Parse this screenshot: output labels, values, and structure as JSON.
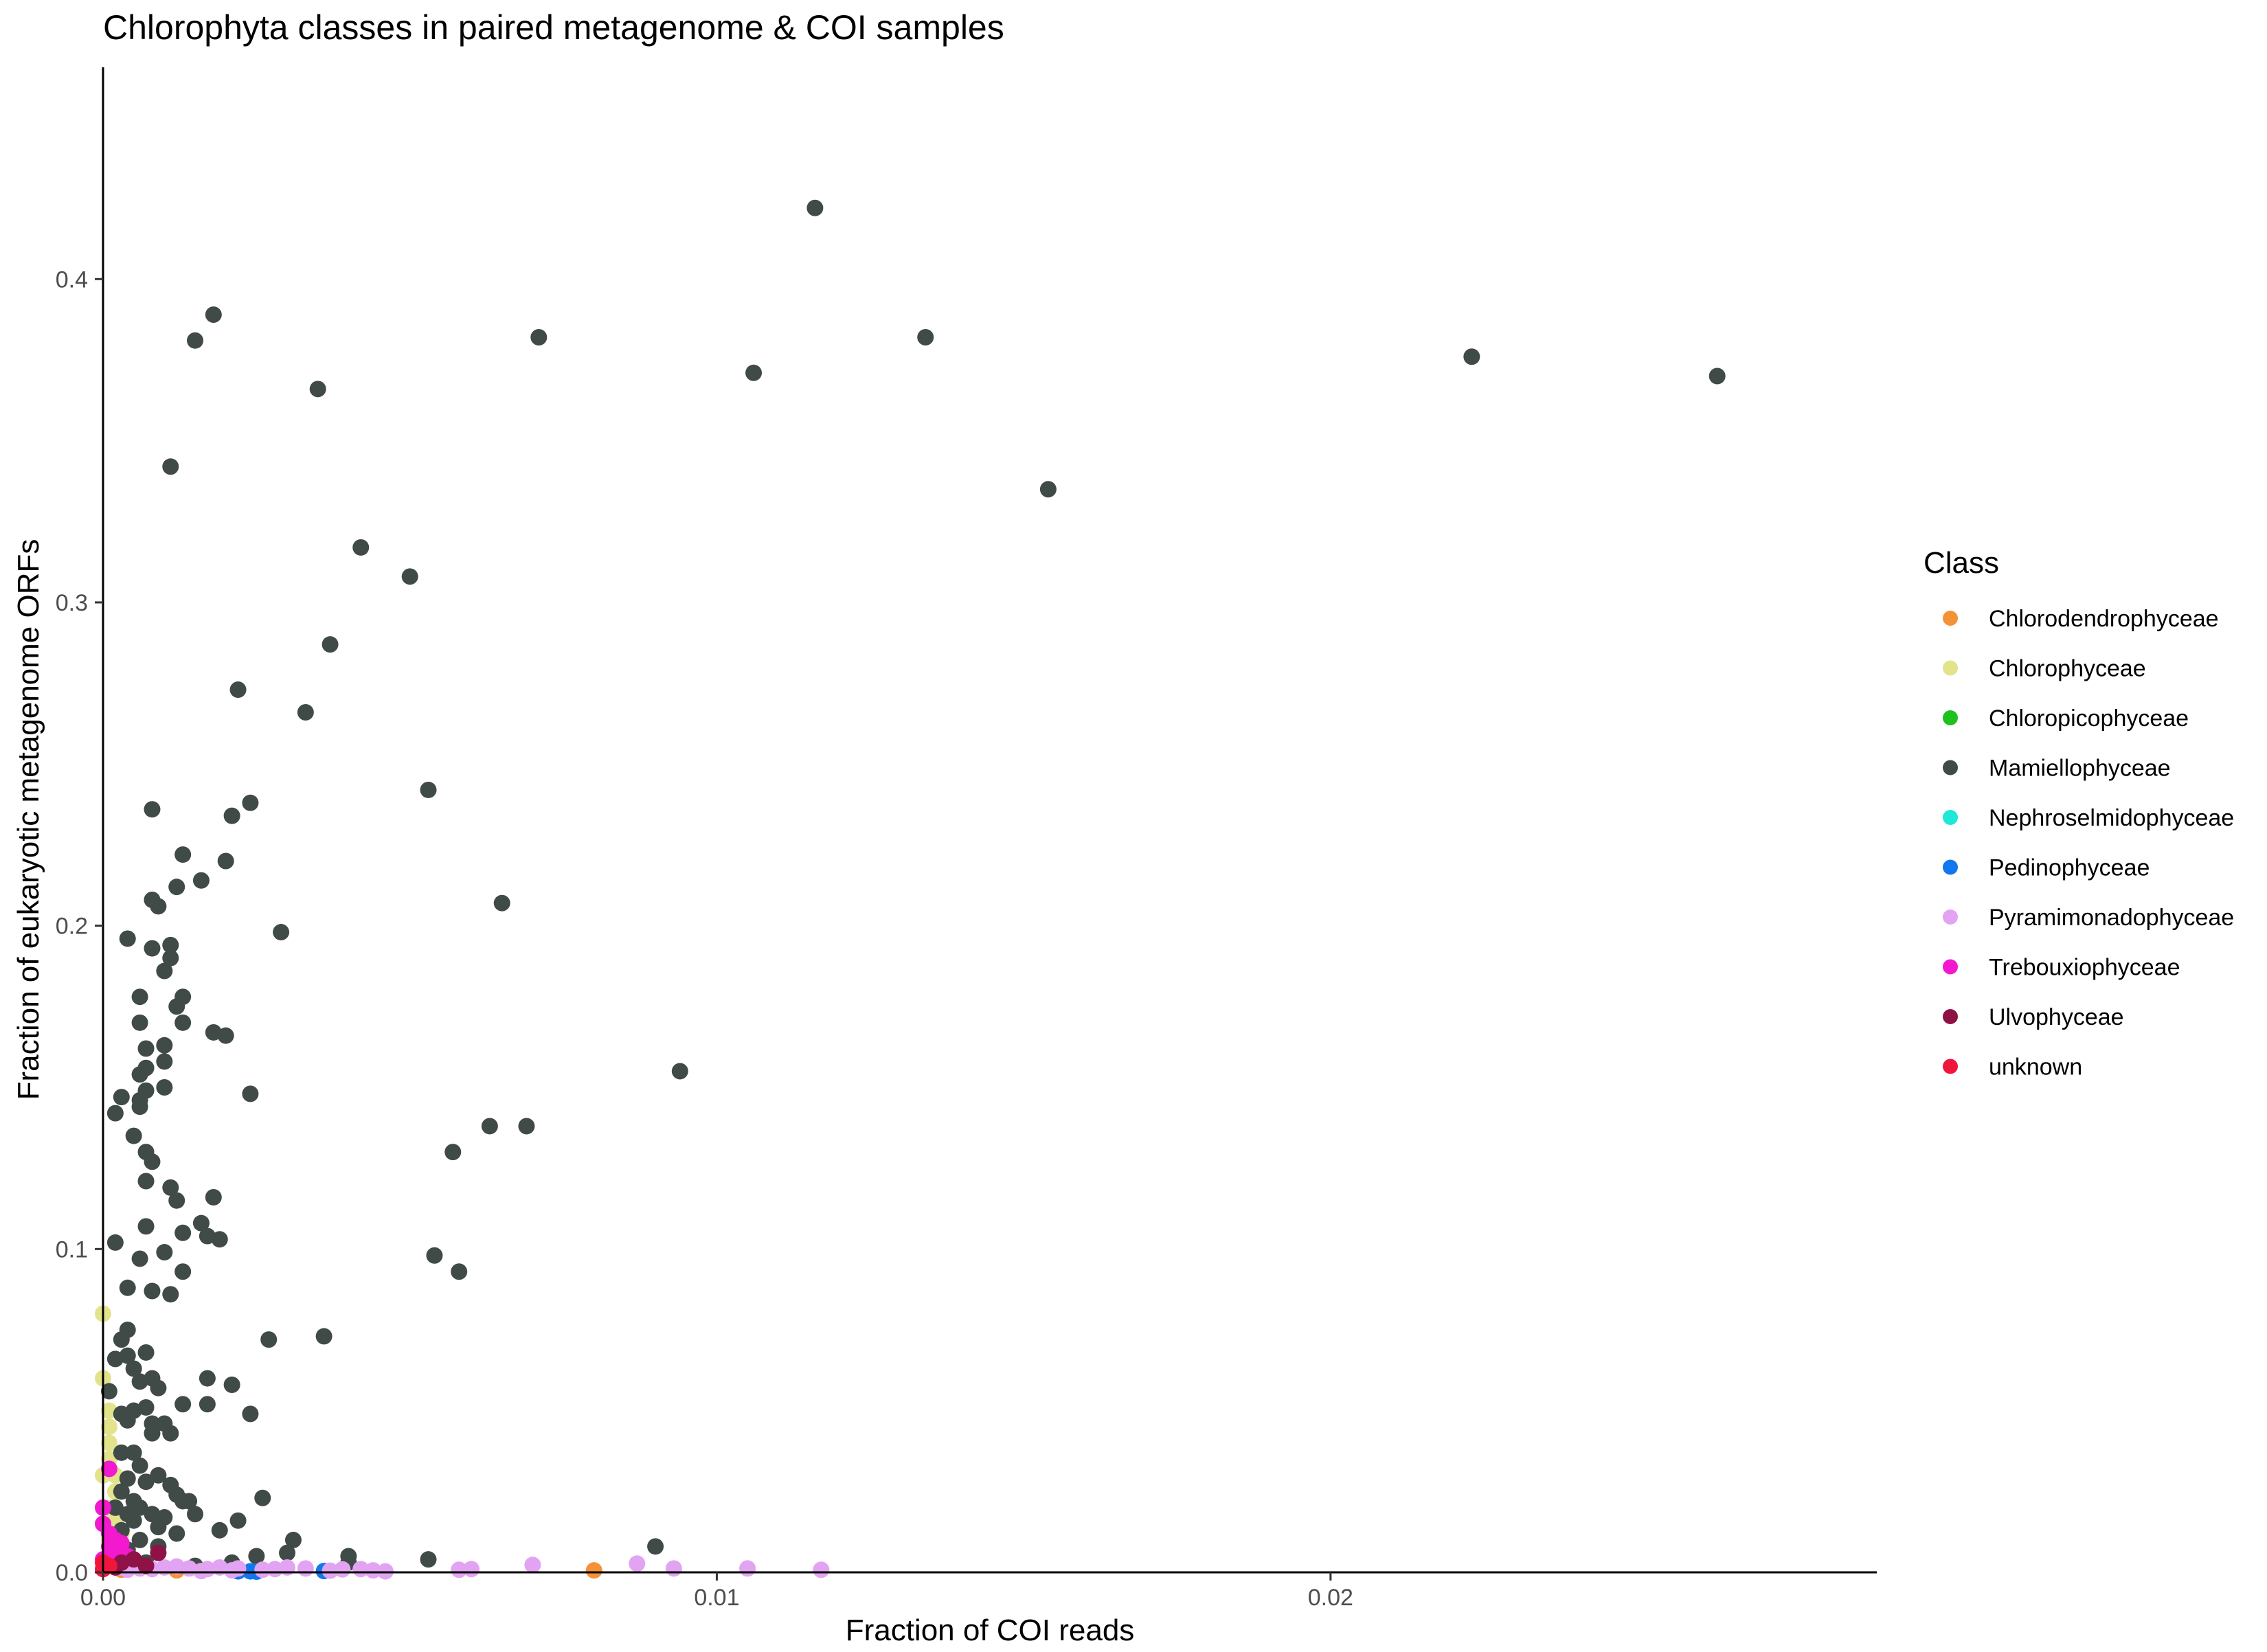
{
  "chart_data": {
    "type": "scatter",
    "title": "Chlorophyta classes in paired metagenome & COI samples",
    "xlabel": "Fraction of COI reads",
    "ylabel": "Fraction of eukaryotic metagenome ORFs",
    "xlim": [
      0,
      0.0289
    ],
    "ylim": [
      0,
      0.4655
    ],
    "x_ticks": [
      0,
      0.01,
      0.02
    ],
    "x_tick_labels": [
      "0.00",
      "0.01",
      "0.02"
    ],
    "y_ticks": [
      0,
      0.1,
      0.2,
      0.3,
      0.4
    ],
    "y_tick_labels": [
      "0.0",
      "0.1",
      "0.2",
      "0.3",
      "0.4"
    ],
    "grid": false,
    "legend": {
      "title": "Class",
      "position": "right"
    },
    "series": [
      {
        "name": "Chlorodendrophyceae",
        "color": "#f39237",
        "points": [
          [
            0.0016,
            0.0005
          ],
          [
            0.008,
            0.0006
          ],
          [
            0.0003,
            0.0008
          ],
          [
            0.0012,
            0.0006
          ]
        ]
      },
      {
        "name": "Chlorophyceae",
        "color": "#e2e38b",
        "points": [
          [
            0.0,
            0.08
          ],
          [
            0.0,
            0.06
          ],
          [
            0.0001,
            0.045
          ],
          [
            0.0001,
            0.04
          ],
          [
            0.0001,
            0.035
          ],
          [
            0.0002,
            0.03
          ],
          [
            0.0002,
            0.025
          ],
          [
            0.0001,
            0.02
          ],
          [
            0.0002,
            0.015
          ],
          [
            0.0003,
            0.012
          ],
          [
            0.0001,
            0.05
          ],
          [
            0.0002,
            0.018
          ],
          [
            0.0003,
            0.008
          ],
          [
            0.0004,
            0.005
          ],
          [
            0.0,
            0.03
          ],
          [
            0.0001,
            0.01
          ]
        ]
      },
      {
        "name": "Chloropicophyceae",
        "color": "#1ec11e",
        "points": [
          [
            0.0001,
            0.003
          ],
          [
            0.0002,
            0.002
          ]
        ]
      },
      {
        "name": "Mamiellophyceae",
        "color": "#404a47",
        "points": [
          [
            0.0116,
            0.422
          ],
          [
            0.0018,
            0.389
          ],
          [
            0.0015,
            0.381
          ],
          [
            0.0071,
            0.382
          ],
          [
            0.0134,
            0.382
          ],
          [
            0.0106,
            0.371
          ],
          [
            0.0223,
            0.376
          ],
          [
            0.0263,
            0.37
          ],
          [
            0.0035,
            0.366
          ],
          [
            0.0011,
            0.342
          ],
          [
            0.0154,
            0.335
          ],
          [
            0.0042,
            0.317
          ],
          [
            0.005,
            0.308
          ],
          [
            0.0037,
            0.287
          ],
          [
            0.0022,
            0.273
          ],
          [
            0.0033,
            0.266
          ],
          [
            0.0053,
            0.242
          ],
          [
            0.0008,
            0.236
          ],
          [
            0.0024,
            0.238
          ],
          [
            0.0021,
            0.234
          ],
          [
            0.0013,
            0.222
          ],
          [
            0.002,
            0.22
          ],
          [
            0.0016,
            0.214
          ],
          [
            0.0012,
            0.212
          ],
          [
            0.0008,
            0.208
          ],
          [
            0.0009,
            0.206
          ],
          [
            0.0065,
            0.207
          ],
          [
            0.0029,
            0.198
          ],
          [
            0.0004,
            0.196
          ],
          [
            0.0011,
            0.194
          ],
          [
            0.0008,
            0.193
          ],
          [
            0.0011,
            0.19
          ],
          [
            0.001,
            0.186
          ],
          [
            0.0006,
            0.178
          ],
          [
            0.0013,
            0.178
          ],
          [
            0.0012,
            0.175
          ],
          [
            0.0006,
            0.17
          ],
          [
            0.0013,
            0.17
          ],
          [
            0.0018,
            0.167
          ],
          [
            0.002,
            0.166
          ],
          [
            0.001,
            0.163
          ],
          [
            0.0007,
            0.162
          ],
          [
            0.001,
            0.158
          ],
          [
            0.0007,
            0.156
          ],
          [
            0.0006,
            0.154
          ],
          [
            0.0094,
            0.155
          ],
          [
            0.001,
            0.15
          ],
          [
            0.0007,
            0.149
          ],
          [
            0.0024,
            0.148
          ],
          [
            0.0003,
            0.147
          ],
          [
            0.0006,
            0.146
          ],
          [
            0.0006,
            0.144
          ],
          [
            0.0002,
            0.142
          ],
          [
            0.0063,
            0.138
          ],
          [
            0.0069,
            0.138
          ],
          [
            0.0005,
            0.135
          ],
          [
            0.0057,
            0.13
          ],
          [
            0.0007,
            0.13
          ],
          [
            0.0008,
            0.127
          ],
          [
            0.0007,
            0.121
          ],
          [
            0.0011,
            0.119
          ],
          [
            0.0018,
            0.116
          ],
          [
            0.0012,
            0.115
          ],
          [
            0.0016,
            0.108
          ],
          [
            0.0007,
            0.107
          ],
          [
            0.0013,
            0.105
          ],
          [
            0.0017,
            0.104
          ],
          [
            0.0019,
            0.103
          ],
          [
            0.0002,
            0.102
          ],
          [
            0.001,
            0.099
          ],
          [
            0.0054,
            0.098
          ],
          [
            0.0006,
            0.097
          ],
          [
            0.0058,
            0.093
          ],
          [
            0.0013,
            0.093
          ],
          [
            0.0004,
            0.088
          ],
          [
            0.0008,
            0.087
          ],
          [
            0.0011,
            0.086
          ],
          [
            0.0036,
            0.073
          ],
          [
            0.0027,
            0.072
          ],
          [
            0.0004,
            0.075
          ],
          [
            0.0003,
            0.072
          ],
          [
            0.0007,
            0.068
          ],
          [
            0.0004,
            0.067
          ],
          [
            0.0002,
            0.066
          ],
          [
            0.0005,
            0.063
          ],
          [
            0.0008,
            0.06
          ],
          [
            0.0006,
            0.059
          ],
          [
            0.0017,
            0.06
          ],
          [
            0.0021,
            0.058
          ],
          [
            0.0009,
            0.057
          ],
          [
            0.0001,
            0.056
          ],
          [
            0.0007,
            0.051
          ],
          [
            0.0005,
            0.05
          ],
          [
            0.0003,
            0.049
          ],
          [
            0.0013,
            0.052
          ],
          [
            0.0017,
            0.052
          ],
          [
            0.0024,
            0.049
          ],
          [
            0.0004,
            0.047
          ],
          [
            0.001,
            0.046
          ],
          [
            0.0008,
            0.046
          ],
          [
            0.0011,
            0.043
          ],
          [
            0.0008,
            0.043
          ],
          [
            0.0003,
            0.037
          ],
          [
            0.0005,
            0.037
          ],
          [
            0.0006,
            0.033
          ],
          [
            0.0009,
            0.03
          ],
          [
            0.0004,
            0.029
          ],
          [
            0.0007,
            0.028
          ],
          [
            0.0011,
            0.027
          ],
          [
            0.0012,
            0.024
          ],
          [
            0.0013,
            0.022
          ],
          [
            0.0014,
            0.022
          ],
          [
            0.0026,
            0.023
          ],
          [
            0.0003,
            0.025
          ],
          [
            0.0005,
            0.022
          ],
          [
            0.0006,
            0.02
          ],
          [
            0.0008,
            0.018
          ],
          [
            0.001,
            0.017
          ],
          [
            0.0015,
            0.018
          ],
          [
            0.0022,
            0.016
          ],
          [
            0.0019,
            0.013
          ],
          [
            0.0005,
            0.016
          ],
          [
            0.0009,
            0.014
          ],
          [
            0.0012,
            0.012
          ],
          [
            0.0003,
            0.013
          ],
          [
            0.0006,
            0.01
          ],
          [
            0.0009,
            0.008
          ],
          [
            0.0031,
            0.01
          ],
          [
            0.009,
            0.008
          ],
          [
            0.003,
            0.006
          ],
          [
            0.004,
            0.005
          ],
          [
            0.0025,
            0.005
          ],
          [
            0.004,
            0.003
          ],
          [
            0.0053,
            0.004
          ],
          [
            0.0021,
            0.003
          ],
          [
            0.0015,
            0.002
          ],
          [
            0.0002,
            0.02
          ],
          [
            0.0004,
            0.018
          ],
          [
            0.0002,
            0.01
          ],
          [
            0.0004,
            0.007
          ],
          [
            0.0007,
            0.003
          ]
        ]
      },
      {
        "name": "Nephroselmidophyceae",
        "color": "#1de9d6",
        "points": [
          [
            0.0001,
            0.002
          ]
        ]
      },
      {
        "name": "Pedinophyceae",
        "color": "#1177ec",
        "points": [
          [
            0.0022,
            0.0003
          ],
          [
            0.0024,
            0.0003
          ],
          [
            0.0036,
            0.0004
          ],
          [
            0.0025,
            0.0002
          ]
        ]
      },
      {
        "name": "Pyramimonadophyceae",
        "color": "#e2a4f2",
        "points": [
          [
            0.007,
            0.0023
          ],
          [
            0.0087,
            0.0027
          ],
          [
            0.0093,
            0.0012
          ],
          [
            0.0105,
            0.0012
          ],
          [
            0.0117,
            0.0008
          ],
          [
            0.006,
            0.001
          ],
          [
            0.0058,
            0.0008
          ],
          [
            0.0044,
            0.0006
          ],
          [
            0.0039,
            0.0009
          ],
          [
            0.0033,
            0.0012
          ],
          [
            0.003,
            0.0015
          ],
          [
            0.0028,
            0.001
          ],
          [
            0.0026,
            0.0008
          ],
          [
            0.0022,
            0.0012
          ],
          [
            0.0019,
            0.0015
          ],
          [
            0.0017,
            0.001
          ],
          [
            0.0014,
            0.0012
          ],
          [
            0.0012,
            0.0018
          ],
          [
            0.001,
            0.0015
          ],
          [
            0.0008,
            0.001
          ],
          [
            0.0006,
            0.0012
          ],
          [
            0.0004,
            0.0008
          ],
          [
            0.0003,
            0.0015
          ],
          [
            0.0037,
            0.0005
          ],
          [
            0.0042,
            0.001
          ],
          [
            0.0046,
            0.0003
          ],
          [
            0.0021,
            0.0006
          ],
          [
            0.0016,
            0.0004
          ]
        ]
      },
      {
        "name": "Trebouxiophyceae",
        "color": "#f219cf",
        "points": [
          [
            0.0001,
            0.032
          ],
          [
            0.0,
            0.02
          ],
          [
            0.0,
            0.015
          ],
          [
            0.0001,
            0.012
          ],
          [
            0.0002,
            0.01
          ],
          [
            0.0001,
            0.008
          ],
          [
            0.0003,
            0.009
          ],
          [
            0.0002,
            0.006
          ],
          [
            0.0,
            0.004
          ],
          [
            0.0004,
            0.005
          ]
        ]
      },
      {
        "name": "Ulvophyceae",
        "color": "#8e1245",
        "points": [
          [
            0.0009,
            0.006
          ],
          [
            0.0005,
            0.004
          ],
          [
            0.0003,
            0.003
          ],
          [
            0.0007,
            0.002
          ],
          [
            0.0002,
            0.0015
          ]
        ]
      },
      {
        "name": "unknown",
        "color": "#f0163b",
        "points": [
          [
            0.0,
            0.003
          ],
          [
            0.0001,
            0.002
          ],
          [
            0.0,
            0.001
          ]
        ]
      }
    ]
  }
}
